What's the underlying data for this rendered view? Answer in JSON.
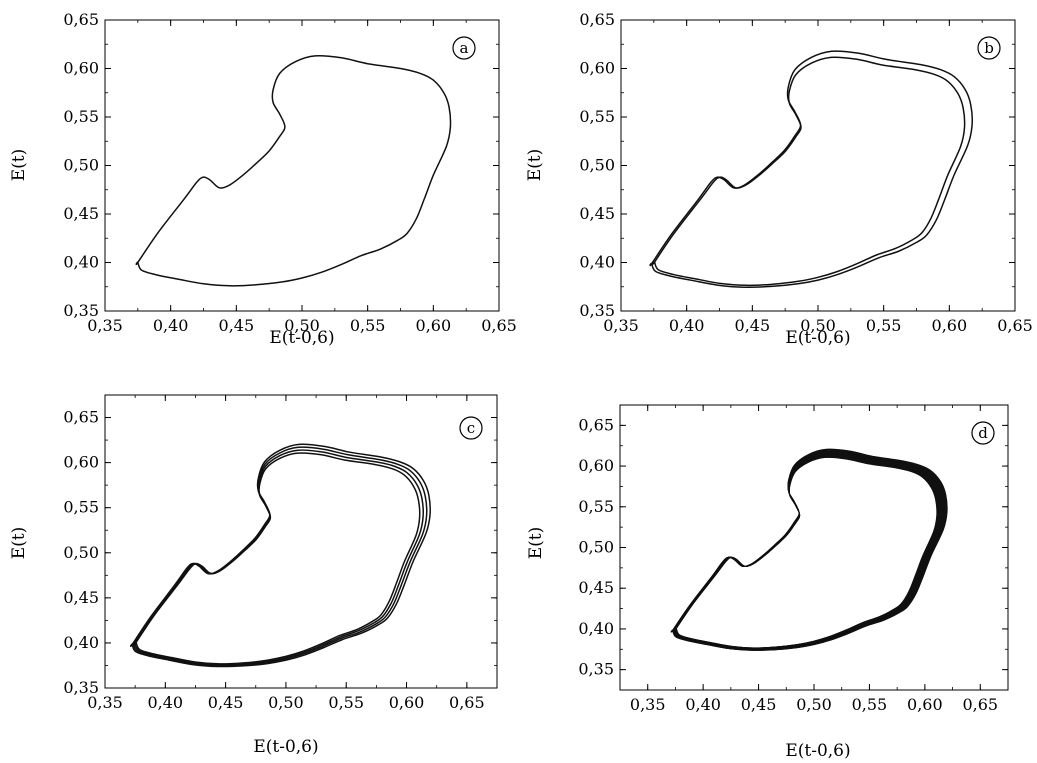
{
  "chart_data": [
    {
      "type": "line",
      "id": "a",
      "badge": "a",
      "xlabel": "E(t-0,6)",
      "ylabel": "E(t)",
      "xlim": [
        0.35,
        0.65
      ],
      "ylim": [
        0.35,
        0.65
      ],
      "xticks": [
        "0,35",
        "0,40",
        "0,45",
        "0,50",
        "0,55",
        "0,60",
        "0,65"
      ],
      "yticks": [
        "0,35",
        "0,40",
        "0,45",
        "0,50",
        "0,55",
        "0,60",
        "0,65"
      ],
      "loops": 1,
      "spread": 0.0
    },
    {
      "type": "line",
      "id": "b",
      "badge": "b",
      "xlabel": "E(t-0,6)",
      "ylabel": "E(t)",
      "xlim": [
        0.35,
        0.65
      ],
      "ylim": [
        0.35,
        0.65
      ],
      "xticks": [
        "0,35",
        "0,40",
        "0,45",
        "0,50",
        "0,55",
        "0,60",
        "0,65"
      ],
      "yticks": [
        "0,35",
        "0,40",
        "0,45",
        "0,50",
        "0,55",
        "0,60",
        "0,65"
      ],
      "loops": 2,
      "spread": 0.016
    },
    {
      "type": "line",
      "id": "c",
      "badge": "c",
      "xlabel": "E(t-0,6)",
      "ylabel": "E(t)",
      "xlim": [
        0.35,
        0.675
      ],
      "ylim": [
        0.35,
        0.675
      ],
      "xticks": [
        "0,35",
        "0,40",
        "0,45",
        "0,50",
        "0,55",
        "0,60",
        "0,65"
      ],
      "yticks": [
        "0,35",
        "0,40",
        "0,45",
        "0,50",
        "0,55",
        "0,60",
        "0,65"
      ],
      "loops": 4,
      "spread": 0.024
    },
    {
      "type": "line",
      "id": "d",
      "badge": "d",
      "xlabel": "E(t-0,6)",
      "ylabel": "E(t)",
      "xlim": [
        0.325,
        0.675
      ],
      "ylim": [
        0.325,
        0.675
      ],
      "xticks": [
        "0,35",
        "0,40",
        "0,45",
        "0,50",
        "0,55",
        "0,60",
        "0,65"
      ],
      "yticks": [
        "0,35",
        "0,40",
        "0,45",
        "0,50",
        "0,55",
        "0,60",
        "0,65"
      ],
      "loops": 28,
      "spread": 0.026
    }
  ],
  "base_loop": {
    "x": [
      0.375,
      0.39,
      0.41,
      0.42,
      0.425,
      0.43,
      0.437,
      0.445,
      0.455,
      0.465,
      0.475,
      0.483,
      0.487,
      0.483,
      0.478,
      0.478,
      0.483,
      0.495,
      0.51,
      0.53,
      0.55,
      0.575,
      0.59,
      0.6,
      0.608,
      0.612,
      0.613,
      0.61,
      0.6,
      0.593,
      0.587,
      0.58,
      0.573,
      0.56,
      0.545,
      0.53,
      0.515,
      0.5,
      0.485,
      0.465,
      0.445,
      0.425,
      0.405,
      0.39,
      0.378,
      0.375
    ],
    "y": [
      0.4,
      0.43,
      0.465,
      0.483,
      0.488,
      0.485,
      0.477,
      0.48,
      0.49,
      0.502,
      0.515,
      0.53,
      0.54,
      0.553,
      0.565,
      0.578,
      0.595,
      0.607,
      0.613,
      0.611,
      0.605,
      0.6,
      0.595,
      0.588,
      0.575,
      0.56,
      0.54,
      0.52,
      0.49,
      0.465,
      0.445,
      0.43,
      0.423,
      0.414,
      0.407,
      0.398,
      0.39,
      0.384,
      0.38,
      0.377,
      0.376,
      0.378,
      0.383,
      0.387,
      0.392,
      0.4
    ]
  }
}
